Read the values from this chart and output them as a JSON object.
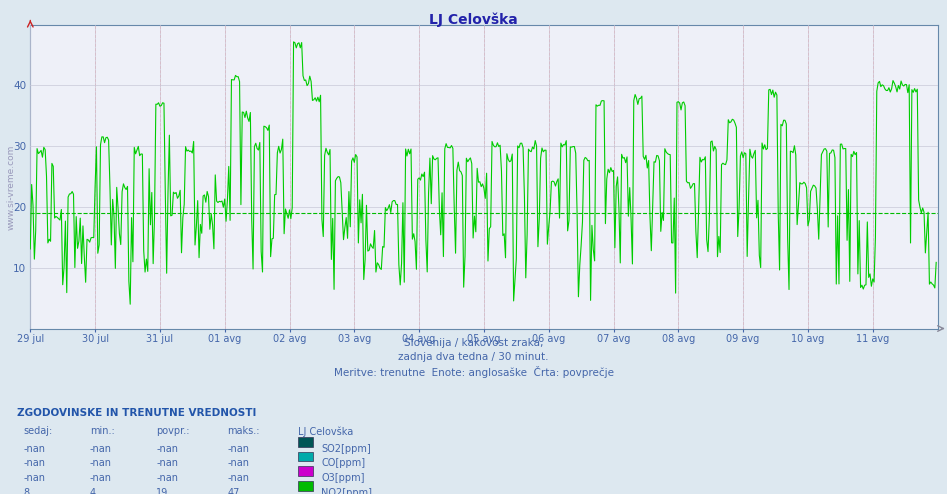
{
  "title": "LJ Celovška",
  "title_color": "#2222aa",
  "bg_color": "#dde8f0",
  "plot_bg_color": "#eef0f8",
  "subtitle_line1": "Slovenija / kakovost zraka,",
  "subtitle_line2": "zadnja dva tedna / 30 minut.",
  "subtitle_line3": "Meritve: trenutne  Enote: anglosaške  Črta: povprečje",
  "xlabel_dates": [
    "29 jul",
    "30 jul",
    "31 jul",
    "01 avg",
    "02 avg",
    "03 avg",
    "04 avg",
    "05 avg",
    "06 avg",
    "07 avg",
    "08 avg",
    "09 avg",
    "10 avg",
    "11 avg"
  ],
  "ylim": [
    0,
    50
  ],
  "yticks": [
    10,
    20,
    30,
    40
  ],
  "avg_line_y": 19,
  "avg_line_color": "#00bb00",
  "grid_color": "#c8c8d8",
  "vline_color": "#ff8888",
  "line_color": "#00cc00",
  "line_width": 0.8,
  "table_title": "ZGODOVINSKE IN TRENUTNE VREDNOSTI",
  "table_headers": [
    "sedaj:",
    "min.:",
    "povpr.:",
    "maks.:",
    "LJ Celovška"
  ],
  "table_rows": [
    [
      "-nan",
      "-nan",
      "-nan",
      "-nan",
      "SO2[ppm]",
      "#005555"
    ],
    [
      "-nan",
      "-nan",
      "-nan",
      "-nan",
      "CO[ppm]",
      "#00aaaa"
    ],
    [
      "-nan",
      "-nan",
      "-nan",
      "-nan",
      "O3[ppm]",
      "#cc00cc"
    ],
    [
      "8",
      "4",
      "19",
      "47",
      "NO2[ppm]",
      "#00bb00"
    ]
  ],
  "watermark_text": "www.si-vreme.com",
  "watermark_color": "#9999bb",
  "n_days": 14,
  "points_per_day": 48,
  "text_color": "#4466aa"
}
